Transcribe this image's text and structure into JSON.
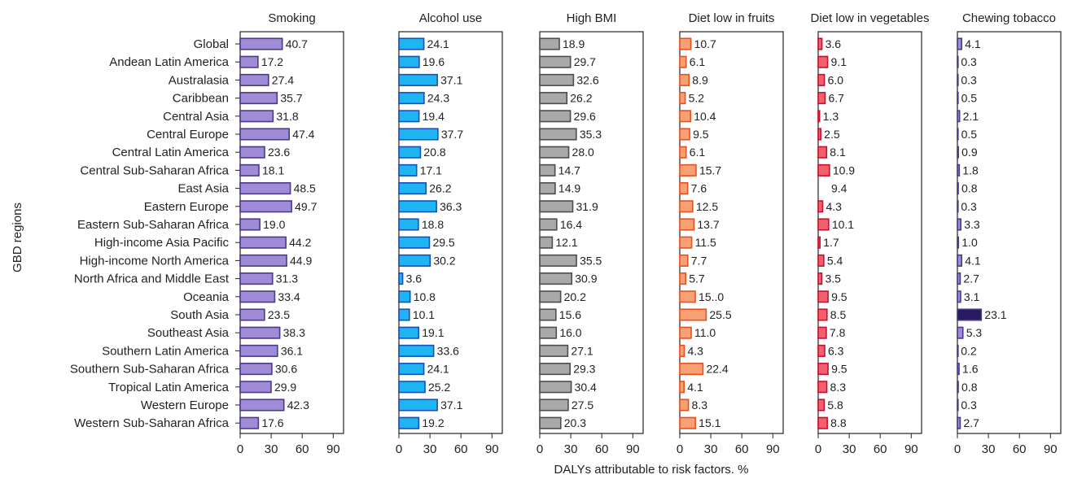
{
  "chart_data": {
    "type": "bar",
    "orientation": "horizontal",
    "ylabel": "GBD regions",
    "xlabel": "DALYs attributable to risk factors. %",
    "xlim": [
      0,
      100
    ],
    "xticks": [
      0,
      30,
      60,
      90
    ],
    "grid": false,
    "categories": [
      "Global",
      "Andean Latin America",
      "Australasia",
      "Caribbean",
      "Central Asia",
      "Central Europe",
      "Central Latin America",
      "Central Sub-Saharan Africa",
      "East Asia",
      "Eastern Europe",
      "Eastern Sub-Saharan Africa",
      "High-income Asia Pacific",
      "High-income North America",
      "North Africa and Middle East",
      "Oceania",
      "South Asia",
      "Southeast Asia",
      "Southern Latin America",
      "Southern Sub-Saharan Africa",
      "Tropical Latin America",
      "Western Europe",
      "Western Sub-Saharan Africa"
    ],
    "panels": [
      {
        "title": "Smoking",
        "fill": "#a08bd6",
        "stroke": "#4a3a8c",
        "values": [
          40.7,
          17.2,
          27.4,
          35.7,
          31.8,
          47.4,
          23.6,
          18.1,
          48.5,
          49.7,
          19.0,
          44.2,
          44.9,
          31.3,
          33.4,
          23.5,
          38.3,
          36.1,
          30.6,
          29.9,
          42.3,
          17.6
        ],
        "labels": [
          "40.7",
          "17.2",
          "27.4",
          "35.7",
          "31.8",
          "47.4",
          "23.6",
          "18.1",
          "48.5",
          "49.7",
          "19.0",
          "44.2",
          "44.9",
          "31.3",
          "33.4",
          "23.5",
          "38.3",
          "36.1",
          "30.6",
          "29.9",
          "42.3",
          "17.6"
        ]
      },
      {
        "title": "Alcohol use",
        "fill": "#1fb4f2",
        "stroke": "#1a4fb8",
        "values": [
          24.1,
          19.6,
          37.1,
          24.3,
          19.4,
          37.7,
          20.8,
          17.1,
          26.2,
          36.3,
          18.8,
          29.5,
          30.2,
          3.6,
          10.8,
          10.1,
          19.1,
          33.6,
          24.1,
          25.2,
          37.1,
          19.2
        ],
        "labels": [
          "24.1",
          "19.6",
          "37.1",
          "24.3",
          "19.4",
          "37.7",
          "20.8",
          "17.1",
          "26.2",
          "36.3",
          "18.8",
          "29.5",
          "30.2",
          "3.6",
          "10.8",
          "10.1",
          "19.1",
          "33.6",
          "24.1",
          "25.2",
          "37.1",
          "19.2"
        ]
      },
      {
        "title": "High BMI",
        "fill": "#a9a9a9",
        "stroke": "#4d4d4d",
        "values": [
          18.9,
          29.7,
          32.6,
          26.2,
          29.6,
          35.3,
          28.0,
          14.7,
          14.9,
          31.9,
          16.4,
          12.1,
          35.5,
          30.9,
          20.2,
          15.6,
          16.0,
          27.1,
          29.3,
          30.4,
          27.5,
          20.3
        ],
        "labels": [
          "18.9",
          "29.7",
          "32.6",
          "26.2",
          "29.6",
          "35.3",
          "28.0",
          "14.7",
          "14.9",
          "31.9",
          "16.4",
          "12.1",
          "35.5",
          "30.9",
          "20.2",
          "15.6",
          "16.0",
          "27.1",
          "29.3",
          "30.4",
          "27.5",
          "20.3"
        ]
      },
      {
        "title": "Diet low in fruits",
        "fill": "#f7a074",
        "stroke": "#e8501e",
        "values": [
          10.7,
          6.1,
          8.9,
          5.2,
          10.4,
          9.5,
          6.1,
          15.7,
          7.6,
          12.5,
          13.7,
          11.5,
          7.7,
          5.7,
          15.0,
          25.5,
          11.0,
          4.3,
          22.4,
          4.1,
          8.3,
          15.1
        ],
        "labels": [
          "10.7",
          "6.1",
          "8.9",
          "5.2",
          "10.4",
          "9.5",
          "6.1",
          "15.7",
          "7.6",
          "12.5",
          "13.7",
          "11.5",
          "7.7",
          "5.7",
          "15..0",
          "25.5",
          "11.0",
          "4.3",
          "22.4",
          "4.1",
          "8.3",
          "15.1"
        ]
      },
      {
        "title": "Diet low in vegetables",
        "fill": "#f2606e",
        "stroke": "#c8102e",
        "values": [
          3.6,
          9.1,
          6.0,
          6.7,
          1.3,
          2.5,
          8.1,
          10.9,
          9.4,
          4.3,
          10.1,
          1.7,
          5.4,
          3.5,
          9.5,
          8.5,
          7.8,
          6.3,
          9.5,
          8.3,
          5.8,
          8.8
        ],
        "labels": [
          "3.6",
          "9.1",
          "6.0",
          "6.7",
          "1.3",
          "2.5",
          "8.1",
          "10.9",
          "9.4",
          "4.3",
          "10.1",
          "1.7",
          "5.4",
          "3.5",
          "9.5",
          "8.5",
          "7.8",
          "6.3",
          "9.5",
          "8.3",
          "5.8",
          "8.8"
        ],
        "hidden_bars": [
          8
        ]
      },
      {
        "title": "Chewing tobacco",
        "fill": "#a08bd6",
        "stroke": "#4a3a8c",
        "values": [
          4.1,
          0.3,
          0.3,
          0.5,
          2.1,
          0.5,
          0.9,
          1.8,
          0.8,
          0.3,
          3.3,
          1.0,
          4.1,
          2.7,
          3.1,
          23.1,
          5.3,
          0.2,
          1.6,
          0.8,
          0.3,
          2.7
        ],
        "labels": [
          "4.1",
          "0.3",
          "0.3",
          "0.5",
          "2.1",
          "0.5",
          "0.9",
          "1.8",
          "0.8",
          "0.3",
          "3.3",
          "1.0",
          "4.1",
          "2.7",
          "3.1",
          "23.1",
          "5.3",
          "0.2",
          "1.6",
          "0.8",
          "0.3",
          "2.7"
        ],
        "highlight": {
          "index": 15,
          "fill": "#2a1a5e"
        }
      }
    ]
  }
}
